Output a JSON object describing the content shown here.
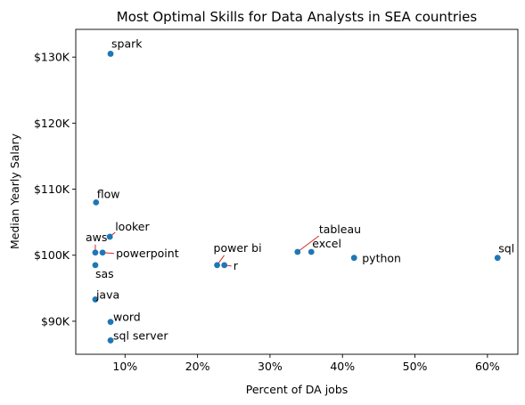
{
  "chart_data": {
    "type": "scatter",
    "title": "Most Optimal Skills for Data Analysts in SEA countries",
    "xlabel": "Percent of DA jobs",
    "ylabel": "Median Yearly Salary",
    "xlim": [
      3.2,
      64.2
    ],
    "ylim": [
      85000,
      134200
    ],
    "grid": false,
    "x_ticks": [
      10,
      20,
      30,
      40,
      50,
      60
    ],
    "x_tick_labels": [
      "10%",
      "20%",
      "30%",
      "40%",
      "50%",
      "60%"
    ],
    "y_ticks": [
      90000,
      100000,
      110000,
      120000,
      130000
    ],
    "y_tick_labels": [
      "$90K",
      "$100K",
      "$110K",
      "$120K",
      "$130K"
    ],
    "point_color": "#1f77b4",
    "arrow_color": "#d62728",
    "points": [
      {
        "skill": "sql",
        "x": 61.4,
        "y": 99600
      },
      {
        "skill": "python",
        "x": 41.6,
        "y": 99600
      },
      {
        "skill": "excel",
        "x": 35.7,
        "y": 100500
      },
      {
        "skill": "tableau",
        "x": 33.8,
        "y": 100500
      },
      {
        "skill": "power bi",
        "x": 22.7,
        "y": 98500
      },
      {
        "skill": "r",
        "x": 23.7,
        "y": 98500
      },
      {
        "skill": "spark",
        "x": 8.0,
        "y": 130500
      },
      {
        "skill": "flow",
        "x": 6.0,
        "y": 108000
      },
      {
        "skill": "looker",
        "x": 7.9,
        "y": 102800
      },
      {
        "skill": "aws",
        "x": 5.9,
        "y": 100400
      },
      {
        "skill": "powerpoint",
        "x": 6.9,
        "y": 100400
      },
      {
        "skill": "sas",
        "x": 5.9,
        "y": 98500
      },
      {
        "skill": "java",
        "x": 5.9,
        "y": 93300
      },
      {
        "skill": "word",
        "x": 8.0,
        "y": 89900
      },
      {
        "skill": "sql server",
        "x": 8.0,
        "y": 87100
      }
    ]
  }
}
